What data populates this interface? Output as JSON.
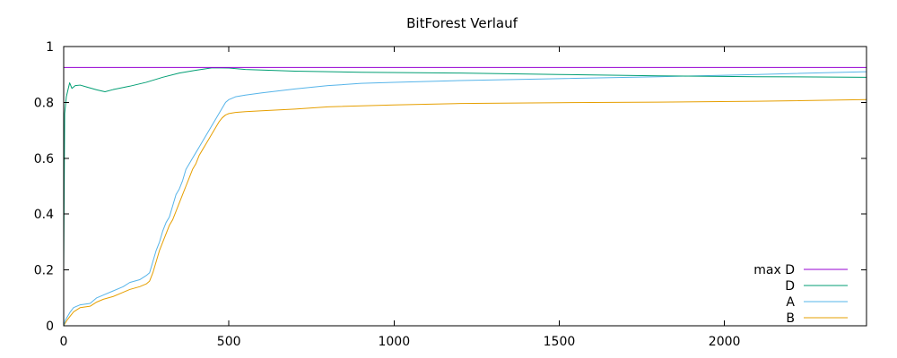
{
  "chart_data": {
    "type": "line",
    "title": "BitForest Verlauf",
    "xlabel": "",
    "ylabel": "",
    "xlim": [
      0,
      2430
    ],
    "ylim": [
      0,
      1
    ],
    "x_ticks": [
      0,
      500,
      1000,
      1500,
      2000
    ],
    "y_ticks": [
      0,
      0.2,
      0.4,
      0.6,
      0.8,
      1
    ],
    "y_tick_labels": [
      "0",
      "0.2",
      "0.4",
      "0.6",
      "0.8",
      "1"
    ],
    "grid": false,
    "legend_position": "bottom-right",
    "series": [
      {
        "name": "max D",
        "color": "#9400d3",
        "x": [
          0,
          2430
        ],
        "y": [
          0.925,
          0.925
        ]
      },
      {
        "name": "D",
        "color": "#009e73",
        "x": [
          0,
          3,
          8,
          12,
          18,
          25,
          35,
          50,
          70,
          100,
          125,
          150,
          200,
          250,
          300,
          350,
          400,
          450,
          500,
          550,
          700,
          900,
          1200,
          1500,
          1800,
          2100,
          2430
        ],
        "y": [
          0.2,
          0.76,
          0.82,
          0.84,
          0.87,
          0.85,
          0.86,
          0.862,
          0.855,
          0.845,
          0.838,
          0.846,
          0.858,
          0.872,
          0.89,
          0.905,
          0.915,
          0.924,
          0.923,
          0.918,
          0.912,
          0.908,
          0.905,
          0.9,
          0.895,
          0.892,
          0.89
        ]
      },
      {
        "name": "A",
        "color": "#56b4e9",
        "x": [
          0,
          5,
          10,
          20,
          30,
          50,
          80,
          100,
          120,
          150,
          180,
          200,
          230,
          250,
          260,
          270,
          280,
          290,
          300,
          310,
          320,
          330,
          340,
          350,
          360,
          370,
          380,
          390,
          400,
          410,
          420,
          430,
          440,
          450,
          460,
          470,
          480,
          490,
          500,
          520,
          550,
          600,
          700,
          800,
          900,
          1000,
          1200,
          1500,
          1800,
          2100,
          2430
        ],
        "y": [
          0.0,
          0.02,
          0.03,
          0.05,
          0.065,
          0.075,
          0.08,
          0.1,
          0.11,
          0.125,
          0.14,
          0.155,
          0.165,
          0.18,
          0.19,
          0.23,
          0.27,
          0.3,
          0.34,
          0.37,
          0.39,
          0.43,
          0.47,
          0.49,
          0.52,
          0.56,
          0.58,
          0.6,
          0.62,
          0.64,
          0.66,
          0.68,
          0.7,
          0.72,
          0.74,
          0.76,
          0.78,
          0.8,
          0.81,
          0.82,
          0.826,
          0.834,
          0.848,
          0.86,
          0.868,
          0.872,
          0.878,
          0.885,
          0.892,
          0.9,
          0.91
        ]
      },
      {
        "name": "B",
        "color": "#e69f00",
        "x": [
          0,
          5,
          10,
          20,
          30,
          50,
          80,
          100,
          120,
          150,
          180,
          200,
          230,
          250,
          260,
          270,
          280,
          290,
          300,
          310,
          320,
          330,
          340,
          350,
          360,
          370,
          380,
          390,
          400,
          410,
          420,
          430,
          440,
          450,
          460,
          470,
          480,
          490,
          500,
          520,
          550,
          600,
          700,
          800,
          1000,
          1200,
          1500,
          1800,
          2100,
          2430
        ],
        "y": [
          0.0,
          0.01,
          0.02,
          0.035,
          0.05,
          0.065,
          0.07,
          0.085,
          0.095,
          0.105,
          0.12,
          0.13,
          0.14,
          0.15,
          0.16,
          0.19,
          0.23,
          0.27,
          0.3,
          0.33,
          0.36,
          0.38,
          0.41,
          0.44,
          0.47,
          0.5,
          0.53,
          0.56,
          0.58,
          0.61,
          0.63,
          0.65,
          0.67,
          0.69,
          0.71,
          0.73,
          0.745,
          0.755,
          0.76,
          0.764,
          0.767,
          0.77,
          0.776,
          0.784,
          0.791,
          0.796,
          0.799,
          0.801,
          0.804,
          0.81
        ]
      }
    ]
  }
}
